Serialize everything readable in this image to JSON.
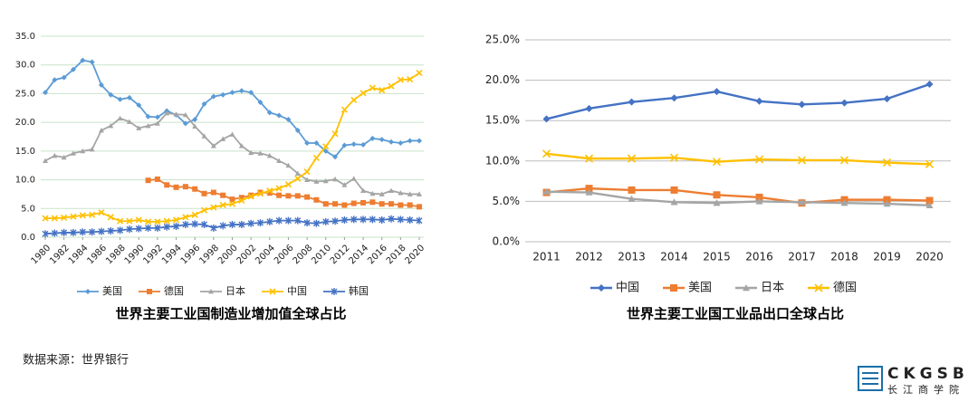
{
  "chart_data": [
    {
      "type": "line",
      "title": "世界主要工业国制造业增加值全球占比",
      "x": [
        1980,
        1981,
        1982,
        1983,
        1984,
        1985,
        1986,
        1987,
        1988,
        1989,
        1990,
        1991,
        1992,
        1993,
        1994,
        1995,
        1996,
        1997,
        1998,
        1999,
        2000,
        2001,
        2002,
        2003,
        2004,
        2005,
        2006,
        2007,
        2008,
        2009,
        2010,
        2011,
        2012,
        2013,
        2014,
        2015,
        2016,
        2017,
        2018,
        2019,
        2020
      ],
      "xlim": [
        1980,
        2020
      ],
      "xticks": [
        1980,
        1982,
        1984,
        1986,
        1988,
        1990,
        1992,
        1994,
        1996,
        1998,
        2000,
        2002,
        2004,
        2006,
        2008,
        2010,
        2012,
        2014,
        2016,
        2018,
        2020
      ],
      "ylim": [
        0,
        35
      ],
      "yticks": [
        {
          "value": 0,
          "label": "0.0"
        },
        {
          "value": 5,
          "label": "5.0"
        },
        {
          "value": 10,
          "label": "10.0"
        },
        {
          "value": 15,
          "label": "15.0"
        },
        {
          "value": 20,
          "label": "20.0"
        },
        {
          "value": 25,
          "label": "25.0"
        },
        {
          "value": 30,
          "label": "30.0"
        },
        {
          "value": 35,
          "label": "35.0"
        }
      ],
      "grid": true,
      "legend": "bottom",
      "series": [
        {
          "name": "美国",
          "color": "#5b9bd5",
          "marker": "diamond",
          "values": [
            25.2,
            27.4,
            27.8,
            29.2,
            30.8,
            30.5,
            26.5,
            24.8,
            24.0,
            24.3,
            23.0,
            21.0,
            20.9,
            22.0,
            21.3,
            19.8,
            20.5,
            23.2,
            24.5,
            24.8,
            25.2,
            25.5,
            25.2,
            23.5,
            21.7,
            21.2,
            20.5,
            18.6,
            16.4,
            16.4,
            15.0,
            14.0,
            16.0,
            16.2,
            16.1,
            17.2,
            17.0,
            16.6,
            16.4,
            16.8,
            16.8
          ]
        },
        {
          "name": "德国",
          "color": "#ed7d31",
          "marker": "square",
          "values": [
            null,
            null,
            null,
            null,
            null,
            null,
            null,
            null,
            null,
            null,
            null,
            9.9,
            10.1,
            9.1,
            8.7,
            8.8,
            8.4,
            7.6,
            7.8,
            7.3,
            6.6,
            6.9,
            7.3,
            7.8,
            7.7,
            7.3,
            7.2,
            7.2,
            7.0,
            6.5,
            5.8,
            5.8,
            5.6,
            5.9,
            6.0,
            6.1,
            5.8,
            5.8,
            5.6,
            5.6,
            5.3
          ]
        },
        {
          "name": "日本",
          "color": "#a5a5a5",
          "marker": "triangle",
          "values": [
            13.3,
            14.2,
            13.9,
            14.6,
            15.0,
            15.3,
            18.6,
            19.4,
            20.7,
            20.1,
            19.0,
            19.4,
            19.8,
            21.6,
            21.4,
            21.3,
            19.3,
            17.6,
            15.9,
            17.1,
            17.9,
            15.9,
            14.7,
            14.6,
            14.2,
            13.3,
            12.5,
            11.1,
            10.0,
            9.7,
            9.8,
            10.1,
            9.1,
            10.2,
            8.1,
            7.6,
            7.5,
            8.1,
            7.7,
            7.5,
            7.5
          ]
        },
        {
          "name": "中国",
          "color": "#ffc000",
          "marker": "x",
          "values": [
            3.3,
            3.3,
            3.4,
            3.6,
            3.8,
            3.9,
            4.3,
            3.5,
            2.8,
            2.8,
            3.0,
            2.7,
            2.7,
            2.8,
            3.0,
            3.5,
            3.9,
            4.7,
            5.2,
            5.6,
            5.8,
            6.4,
            7.1,
            7.6,
            8.1,
            8.5,
            9.2,
            10.2,
            11.4,
            13.8,
            15.8,
            18.0,
            22.2,
            23.9,
            25.1,
            26.0,
            25.6,
            26.3,
            27.4,
            27.5,
            28.6
          ]
        },
        {
          "name": "韩国",
          "color": "#4472c4",
          "marker": "star",
          "values": [
            0.6,
            0.7,
            0.8,
            0.8,
            0.9,
            0.9,
            1.0,
            1.1,
            1.2,
            1.4,
            1.5,
            1.6,
            1.6,
            1.8,
            1.9,
            2.2,
            2.3,
            2.2,
            1.6,
            2.0,
            2.2,
            2.2,
            2.4,
            2.5,
            2.7,
            2.9,
            2.9,
            2.9,
            2.5,
            2.4,
            2.7,
            2.8,
            3.0,
            3.1,
            3.1,
            3.1,
            3.0,
            3.2,
            3.1,
            3.0,
            2.9
          ]
        }
      ]
    },
    {
      "type": "line",
      "title": "世界主要工业国工业品出口全球占比",
      "categories": [
        "2011",
        "2012",
        "2013",
        "2014",
        "2015",
        "2016",
        "2017",
        "2018",
        "2019",
        "2020"
      ],
      "ylim": [
        0,
        25
      ],
      "yticks": [
        {
          "value": 0,
          "label": "0.0%"
        },
        {
          "value": 5,
          "label": "5.0%"
        },
        {
          "value": 10,
          "label": "10.0%"
        },
        {
          "value": 15,
          "label": "15.0%"
        },
        {
          "value": 20,
          "label": "20.0%"
        },
        {
          "value": 25,
          "label": "25.0%"
        }
      ],
      "grid": true,
      "legend": "bottom",
      "series": [
        {
          "name": "中国",
          "color": "#4472c4",
          "marker": "diamond",
          "values": [
            15.2,
            16.5,
            17.3,
            17.8,
            18.6,
            17.4,
            17.0,
            17.2,
            17.7,
            19.5
          ]
        },
        {
          "name": "美国",
          "color": "#ed7d31",
          "marker": "square",
          "values": [
            6.1,
            6.6,
            6.4,
            6.4,
            5.8,
            5.5,
            4.8,
            5.2,
            5.2,
            5.1
          ]
        },
        {
          "name": "日本",
          "color": "#a5a5a5",
          "marker": "triangle",
          "values": [
            6.2,
            6.1,
            5.3,
            4.9,
            4.8,
            5.0,
            4.9,
            4.8,
            4.7,
            4.5
          ]
        },
        {
          "name": "德国",
          "color": "#ffc000",
          "marker": "x",
          "values": [
            10.9,
            10.3,
            10.3,
            10.4,
            9.9,
            10.2,
            10.1,
            10.1,
            9.8,
            9.6
          ]
        }
      ]
    }
  ],
  "source": "数据来源：世界银行",
  "logo": {
    "name": "CKGSB",
    "sub": "长江商学院"
  }
}
